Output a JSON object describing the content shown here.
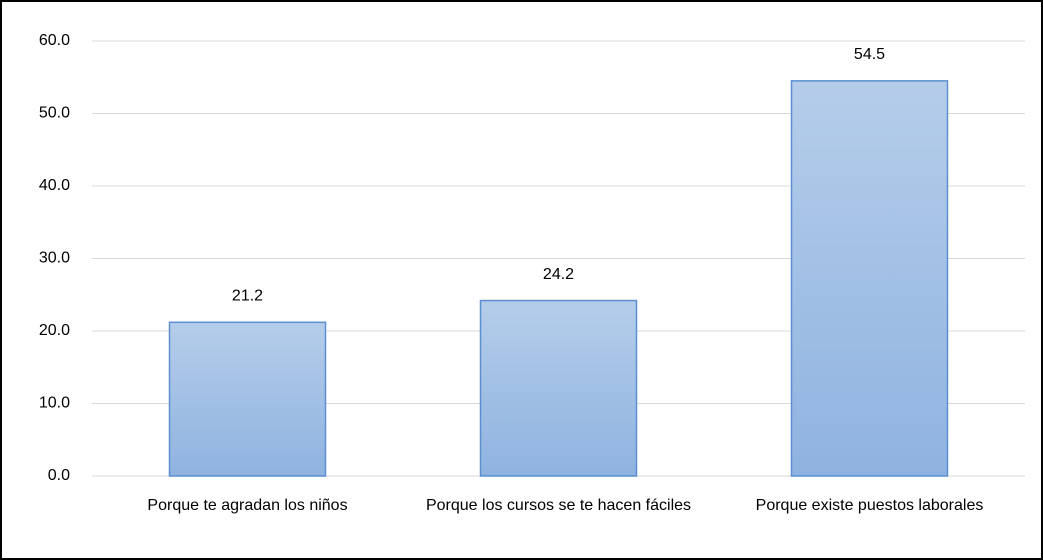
{
  "chart_data": {
    "type": "bar",
    "categories": [
      "Porque te agradan los niños",
      "Porque los cursos se te hacen fáciles",
      "Porque existe puestos laborales"
    ],
    "values": [
      21.2,
      24.2,
      54.5
    ],
    "color": "#9dbde6",
    "ylim": [
      0,
      60
    ],
    "yticks": [
      {
        "value": 0,
        "label": "0.0"
      },
      {
        "value": 10,
        "label": "10.0"
      },
      {
        "value": 20,
        "label": "20.0"
      },
      {
        "value": 30,
        "label": "30.0"
      },
      {
        "value": 40,
        "label": "40.0"
      },
      {
        "value": 50,
        "label": "50.0"
      },
      {
        "value": 60,
        "label": "60.0"
      }
    ],
    "grid": true
  }
}
